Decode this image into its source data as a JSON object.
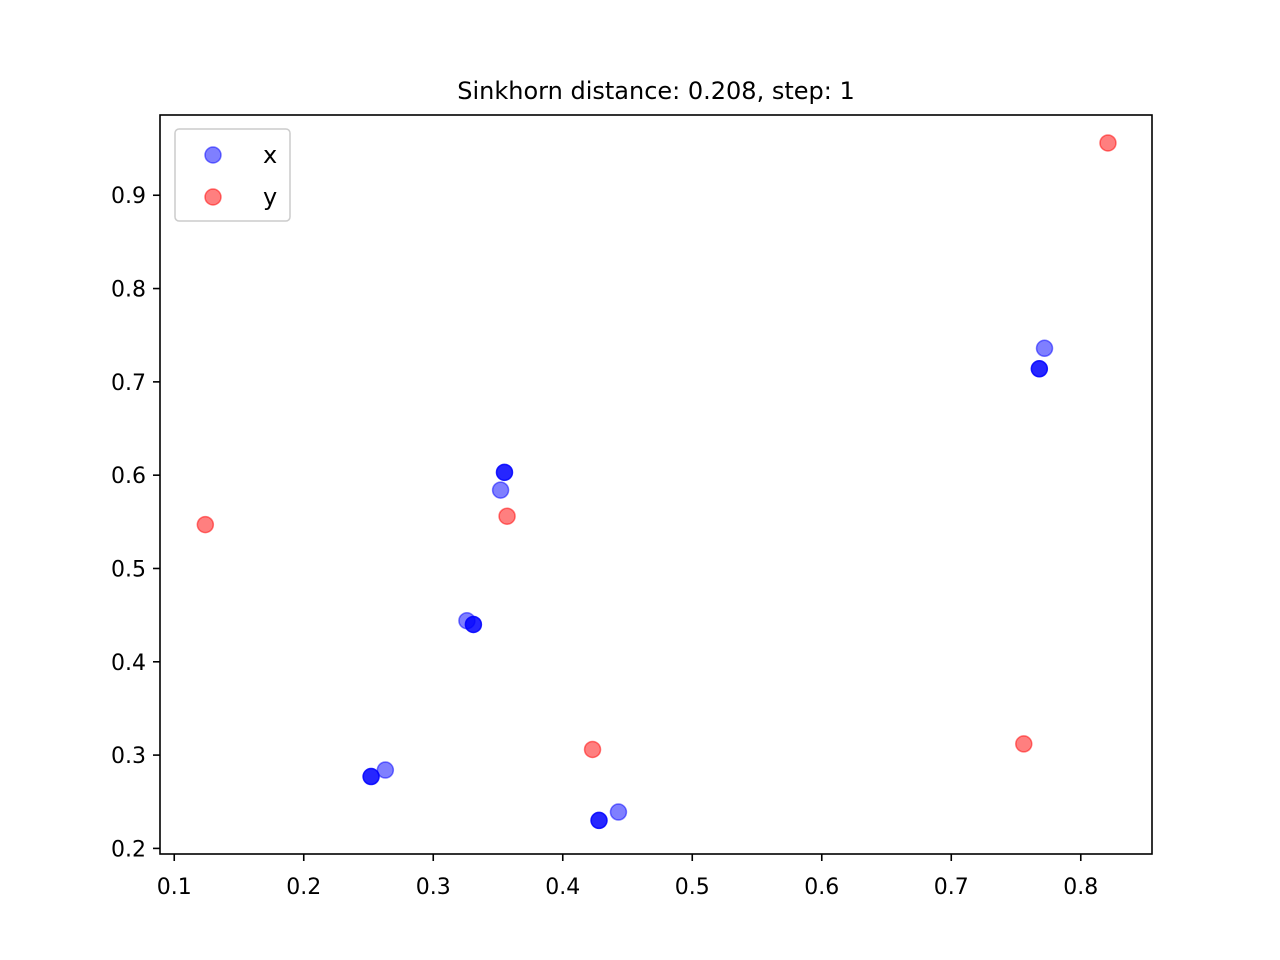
{
  "chart_data": {
    "type": "scatter",
    "title": "Sinkhorn distance: 0.208, step: 1",
    "xlabel": "",
    "ylabel": "",
    "xlim": [
      0.089,
      0.855
    ],
    "ylim": [
      0.194,
      0.986
    ],
    "xticks": [
      0.1,
      0.2,
      0.3,
      0.4,
      0.5,
      0.6,
      0.7,
      0.8
    ],
    "yticks": [
      0.2,
      0.3,
      0.4,
      0.5,
      0.6,
      0.7,
      0.8,
      0.9
    ],
    "grid": false,
    "legend_placement": "top-left",
    "series": [
      {
        "name": "x",
        "color": "#0000ff",
        "alpha": 0.5,
        "points": [
          {
            "x": 0.352,
            "y": 0.584
          },
          {
            "x": 0.326,
            "y": 0.444
          },
          {
            "x": 0.263,
            "y": 0.284
          },
          {
            "x": 0.443,
            "y": 0.239
          },
          {
            "x": 0.772,
            "y": 0.736
          }
        ]
      },
      {
        "name": "y",
        "color": "#ff0000",
        "alpha": 0.5,
        "points": [
          {
            "x": 0.124,
            "y": 0.547
          },
          {
            "x": 0.357,
            "y": 0.556
          },
          {
            "x": 0.423,
            "y": 0.306
          },
          {
            "x": 0.756,
            "y": 0.312
          },
          {
            "x": 0.821,
            "y": 0.956
          }
        ]
      }
    ],
    "extra_points": {
      "color": "#0000ff",
      "alpha": 0.85,
      "points": [
        {
          "x": 0.355,
          "y": 0.603
        },
        {
          "x": 0.331,
          "y": 0.44
        },
        {
          "x": 0.252,
          "y": 0.277
        },
        {
          "x": 0.428,
          "y": 0.23
        },
        {
          "x": 0.768,
          "y": 0.714
        }
      ]
    }
  }
}
